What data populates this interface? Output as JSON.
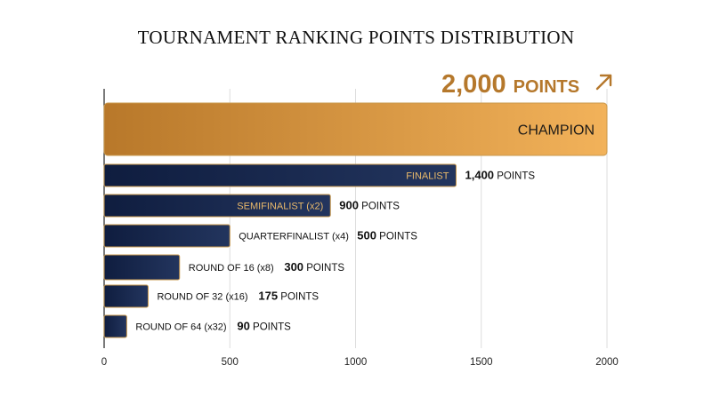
{
  "chart_data": {
    "type": "bar",
    "orientation": "horizontal",
    "title": "TOURNAMENT RANKING POINTS DISTRIBUTION",
    "xlim": [
      0,
      2000
    ],
    "xticks": [
      0,
      500,
      1000,
      1500,
      2000
    ],
    "grid": true,
    "unit": "POINTS",
    "bars": [
      {
        "label": "CHAMPION",
        "count": "",
        "value": 2000,
        "value_text": "2,000",
        "highlight": true
      },
      {
        "label": "FINALIST",
        "count": "",
        "value": 1400,
        "value_text": "1,400"
      },
      {
        "label": "SEMIFINALIST (x2)",
        "count": "",
        "value": 900,
        "value_text": "900"
      },
      {
        "label": "QUARTERFINALIST (x4)",
        "count": "",
        "value": 500,
        "value_text": "500"
      },
      {
        "label": "ROUND OF 16",
        "count": "(x8)",
        "value": 300,
        "value_text": "300"
      },
      {
        "label": "ROUND OF 32 (x16)",
        "count": "",
        "value": 175,
        "value_text": "175"
      },
      {
        "label": "ROUND OF 64 (x32)",
        "count": "",
        "value": 90,
        "value_text": "90"
      }
    ],
    "colors": {
      "gold_start": "#b8782a",
      "gold_end": "#f2b25a",
      "gold_text": "#b5782c",
      "navy": "#0f1d3f",
      "navy_light": "#23355e",
      "label_gold": "#e9b96a",
      "border_gold": "#c9994e"
    },
    "arrow_icon": "arrow-up-right-icon"
  }
}
